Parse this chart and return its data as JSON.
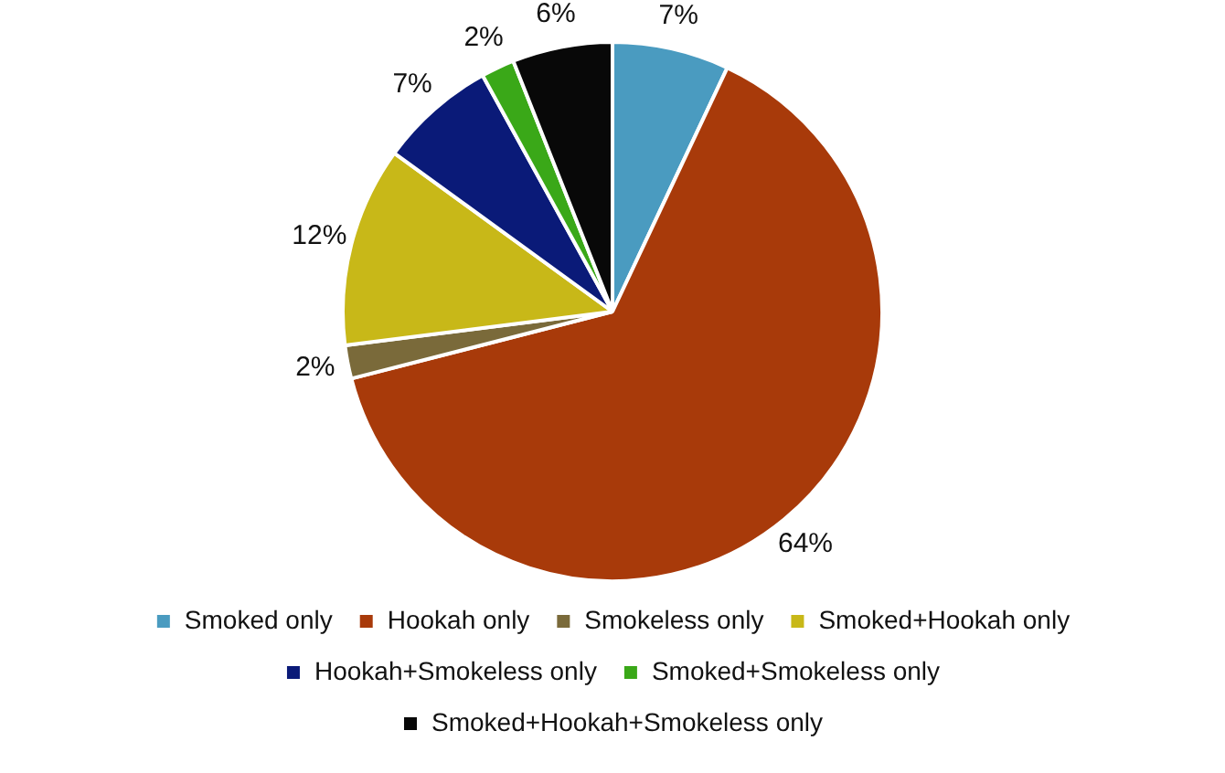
{
  "chart_data": {
    "type": "pie",
    "categories": [
      "Smoked only",
      "Hookah only",
      "Smokeless only",
      "Smoked+Hookah only",
      "Hookah+Smokeless only",
      "Smoked+Smokeless only",
      "Smoked+Hookah+Smokeless only"
    ],
    "values": [
      7,
      64,
      2,
      12,
      7,
      2,
      6
    ],
    "value_labels": [
      "7%",
      "64%",
      "2%",
      "12%",
      "7%",
      "2%",
      "6%"
    ],
    "colors": [
      "#4a9bc0",
      "#a83a0a",
      "#7a6a3a",
      "#c8b818",
      "#0a1a78",
      "#3aa818",
      "#080808"
    ],
    "legend": "bottom"
  }
}
